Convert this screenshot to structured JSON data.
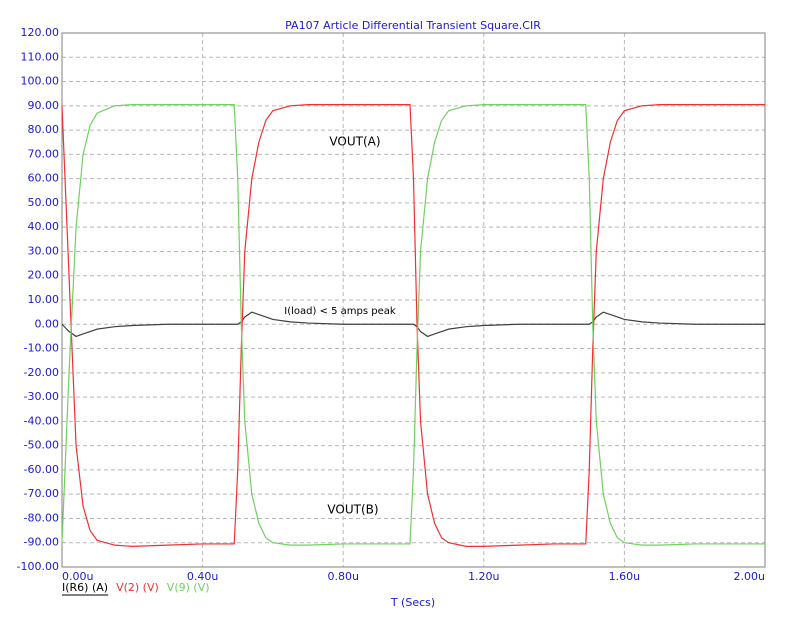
{
  "chart_data": {
    "type": "line",
    "title": "PA107 Article Differential Transient Square.CIR",
    "x_label": "T (Secs)",
    "annotations": [
      "VOUT(A)",
      "I(load) < 5 amps peak",
      "VOUT(B)"
    ],
    "x": [
      0,
      0.02,
      0.04,
      0.06,
      0.08,
      0.1,
      0.15,
      0.2,
      0.3,
      0.4,
      0.49,
      0.5,
      0.51,
      0.52,
      0.54,
      0.56,
      0.58,
      0.6,
      0.65,
      0.7,
      0.8,
      0.9,
      0.99,
      1.0,
      1.01,
      1.02,
      1.04,
      1.06,
      1.08,
      1.1,
      1.15,
      1.2,
      1.3,
      1.4,
      1.49,
      1.5,
      1.51,
      1.52,
      1.54,
      1.56,
      1.58,
      1.6,
      1.65,
      1.7,
      1.8,
      1.9,
      2.0
    ],
    "series": [
      {
        "name": "I(R6) (A)",
        "color": "#404040",
        "values": [
          0,
          -3,
          -5,
          -4,
          -3,
          -2,
          -1,
          -0.5,
          0,
          0,
          0,
          0,
          1,
          3,
          5,
          4,
          3,
          2,
          1,
          0.5,
          0,
          0,
          0,
          0,
          -1,
          -3,
          -5,
          -4,
          -3,
          -2,
          -1,
          -0.5,
          0,
          0,
          0,
          0,
          1,
          3,
          5,
          4,
          3,
          2,
          1,
          0.5,
          0,
          0,
          0
        ]
      },
      {
        "name": "V(2) (V)",
        "color": "#f03030",
        "values": [
          90,
          20,
          -50,
          -75,
          -85,
          -89,
          -91,
          -91.5,
          -91,
          -90.5,
          -90.5,
          -60,
          -10,
          30,
          60,
          75,
          84,
          88,
          90,
          90.5,
          90.5,
          90.5,
          90.5,
          60,
          0,
          -40,
          -70,
          -82,
          -88,
          -90,
          -91.5,
          -91.5,
          -91,
          -90.5,
          -90.5,
          -60,
          -10,
          30,
          60,
          75,
          84,
          88,
          90,
          90.5,
          90.5,
          90.5,
          90.5
        ]
      },
      {
        "name": "V(9) (V)",
        "color": "#70d060",
        "values": [
          -90,
          -20,
          40,
          70,
          82,
          87,
          90,
          90.5,
          90.5,
          90.5,
          90.5,
          60,
          0,
          -40,
          -70,
          -82,
          -88,
          -90,
          -91,
          -91,
          -90.5,
          -90.5,
          -90.5,
          -60,
          -10,
          30,
          60,
          75,
          84,
          88,
          90,
          90.5,
          90.5,
          90.5,
          90.5,
          60,
          0,
          -40,
          -70,
          -82,
          -88,
          -90,
          -91,
          -91,
          -90.5,
          -90.5,
          -90.5
        ]
      }
    ],
    "xlim": [
      0,
      2.0
    ],
    "xticks": [
      {
        "value": 0,
        "label": "0.00u"
      },
      {
        "value": 0.4,
        "label": "0.40u"
      },
      {
        "value": 0.8,
        "label": "0.80u"
      },
      {
        "value": 1.2,
        "label": "1.20u"
      },
      {
        "value": 1.6,
        "label": "1.60u"
      },
      {
        "value": 2.0,
        "label": "2.00u"
      }
    ],
    "ylim": [
      -100,
      120
    ],
    "yticks": [
      {
        "value": 120,
        "label": "120.00"
      },
      {
        "value": 110,
        "label": "110.00"
      },
      {
        "value": 100,
        "label": "100.00"
      },
      {
        "value": 90,
        "label": "90.00"
      },
      {
        "value": 80,
        "label": "80.00"
      },
      {
        "value": 70,
        "label": "70.00"
      },
      {
        "value": 60,
        "label": "60.00"
      },
      {
        "value": 50,
        "label": "50.00"
      },
      {
        "value": 40,
        "label": "40.00"
      },
      {
        "value": 30,
        "label": "30.00"
      },
      {
        "value": 20,
        "label": "20.00"
      },
      {
        "value": 10,
        "label": "10.00"
      },
      {
        "value": 0,
        "label": "0.00"
      },
      {
        "value": -10,
        "label": "-10.00"
      },
      {
        "value": -20,
        "label": "-20.00"
      },
      {
        "value": -30,
        "label": "-30.00"
      },
      {
        "value": -40,
        "label": "-40.00"
      },
      {
        "value": -50,
        "label": "-50.00"
      },
      {
        "value": -60,
        "label": "-60.00"
      },
      {
        "value": -70,
        "label": "-70.00"
      },
      {
        "value": -80,
        "label": "-80.00"
      },
      {
        "value": -90,
        "label": "-90.00"
      },
      {
        "value": -100,
        "label": "-100.00"
      }
    ],
    "grid": true
  }
}
